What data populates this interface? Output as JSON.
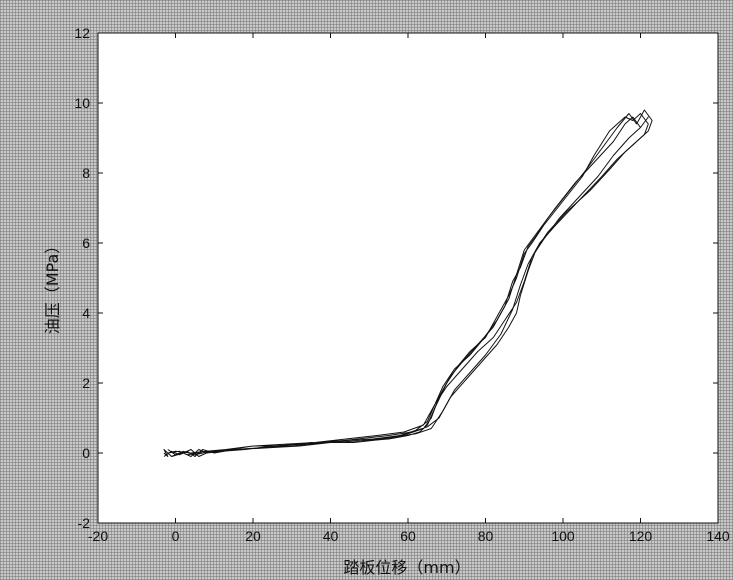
{
  "chart_data": {
    "type": "line",
    "title": "",
    "xlabel": "踏板位移（mm）",
    "ylabel": "油压（MPa）",
    "xlim": [
      -20,
      140
    ],
    "ylim": [
      -2,
      12
    ],
    "x_ticks": [
      -20,
      0,
      20,
      40,
      60,
      80,
      100,
      120,
      140
    ],
    "y_ticks": [
      -2,
      0,
      2,
      4,
      6,
      8,
      10,
      12
    ],
    "grid": false,
    "legend": "none",
    "line_color": "#111111",
    "plot_background": "#ffffff",
    "series": [
      {
        "x": [
          -3,
          -2,
          -3,
          -1,
          2,
          4,
          6,
          8,
          12,
          18,
          25,
          32,
          40,
          48,
          55,
          60,
          63,
          65,
          67,
          70,
          73,
          76,
          80,
          83,
          86,
          88,
          90,
          92,
          95,
          100,
          105,
          108,
          112,
          116,
          118,
          120,
          122,
          121,
          118,
          114,
          110,
          104,
          98,
          94,
          91,
          89,
          87,
          84,
          80,
          76,
          72,
          69,
          66,
          62,
          56,
          48,
          40,
          32,
          24,
          16,
          10,
          6,
          3,
          1,
          -2
        ],
        "y": [
          0,
          -0.1,
          0.1,
          -0.1,
          0,
          -0.1,
          0.1,
          0,
          0.05,
          0.1,
          0.2,
          0.25,
          0.3,
          0.35,
          0.4,
          0.5,
          0.6,
          0.8,
          1.3,
          2.0,
          2.5,
          2.9,
          3.3,
          3.9,
          4.5,
          5.0,
          5.7,
          6.0,
          6.5,
          7.2,
          7.9,
          8.5,
          9.2,
          9.6,
          9.5,
          9.7,
          9.4,
          9.1,
          8.8,
          8.4,
          7.9,
          7.2,
          6.5,
          6.0,
          5.4,
          4.8,
          4.1,
          3.4,
          2.8,
          2.3,
          1.8,
          1.2,
          0.7,
          0.55,
          0.45,
          0.35,
          0.3,
          0.2,
          0.15,
          0.1,
          0.05,
          0,
          -0.05,
          0.05,
          0
        ]
      },
      {
        "x": [
          -2,
          0,
          3,
          5,
          7,
          10,
          15,
          22,
          30,
          38,
          46,
          54,
          60,
          64,
          66,
          68,
          71,
          74,
          78,
          82,
          85,
          87,
          89,
          91,
          93,
          96,
          101,
          106,
          110,
          114,
          117,
          119,
          121,
          123,
          122,
          119,
          116,
          112,
          107,
          101,
          96,
          93,
          91,
          89,
          88,
          86,
          83,
          79,
          75,
          71,
          68,
          65,
          61,
          55,
          47,
          39,
          31,
          23,
          15,
          9,
          5,
          2,
          -1
        ],
        "y": [
          0.1,
          -0.05,
          0.05,
          -0.1,
          0.1,
          0,
          0.1,
          0.15,
          0.2,
          0.3,
          0.3,
          0.4,
          0.55,
          0.7,
          1.0,
          1.6,
          2.2,
          2.6,
          3.1,
          3.6,
          4.2,
          4.9,
          5.3,
          5.9,
          6.2,
          6.7,
          7.4,
          8.1,
          8.7,
          9.3,
          9.7,
          9.4,
          9.8,
          9.5,
          9.2,
          8.9,
          8.6,
          8.1,
          7.5,
          6.9,
          6.3,
          5.8,
          5.2,
          4.5,
          4.0,
          3.6,
          3.1,
          2.6,
          2.1,
          1.6,
          1.0,
          0.75,
          0.6,
          0.5,
          0.4,
          0.3,
          0.25,
          0.15,
          0.1,
          0.05,
          -0.05,
          0.05,
          -0.1
        ]
      },
      {
        "x": [
          -3,
          -1,
          1,
          4,
          6,
          9,
          14,
          20,
          27,
          35,
          43,
          51,
          58,
          62,
          65,
          67,
          69,
          72,
          76,
          79,
          83,
          86,
          88,
          90,
          92,
          94,
          98,
          103,
          108,
          113,
          116,
          118,
          120,
          122,
          120,
          117,
          113,
          109,
          104,
          99,
          95,
          92,
          90,
          88,
          85,
          82,
          78,
          74,
          70,
          67,
          64,
          59,
          52,
          44,
          36,
          28,
          20,
          13,
          8,
          4,
          0,
          -2
        ],
        "y": [
          -0.1,
          0.05,
          -0.05,
          0.1,
          -0.1,
          0.05,
          0.1,
          0.2,
          0.2,
          0.3,
          0.35,
          0.4,
          0.5,
          0.65,
          0.9,
          1.4,
          1.9,
          2.4,
          2.8,
          3.2,
          3.8,
          4.4,
          5.1,
          5.8,
          6.1,
          6.4,
          7.0,
          7.7,
          8.3,
          8.9,
          9.4,
          9.6,
          9.3,
          9.6,
          9.3,
          9.0,
          8.5,
          7.9,
          7.3,
          6.7,
          6.1,
          5.6,
          4.9,
          4.3,
          3.8,
          3.3,
          2.9,
          2.4,
          1.9,
          1.4,
          0.8,
          0.6,
          0.5,
          0.4,
          0.3,
          0.25,
          0.2,
          0.1,
          0.05,
          0,
          0.05,
          0
        ]
      }
    ]
  }
}
